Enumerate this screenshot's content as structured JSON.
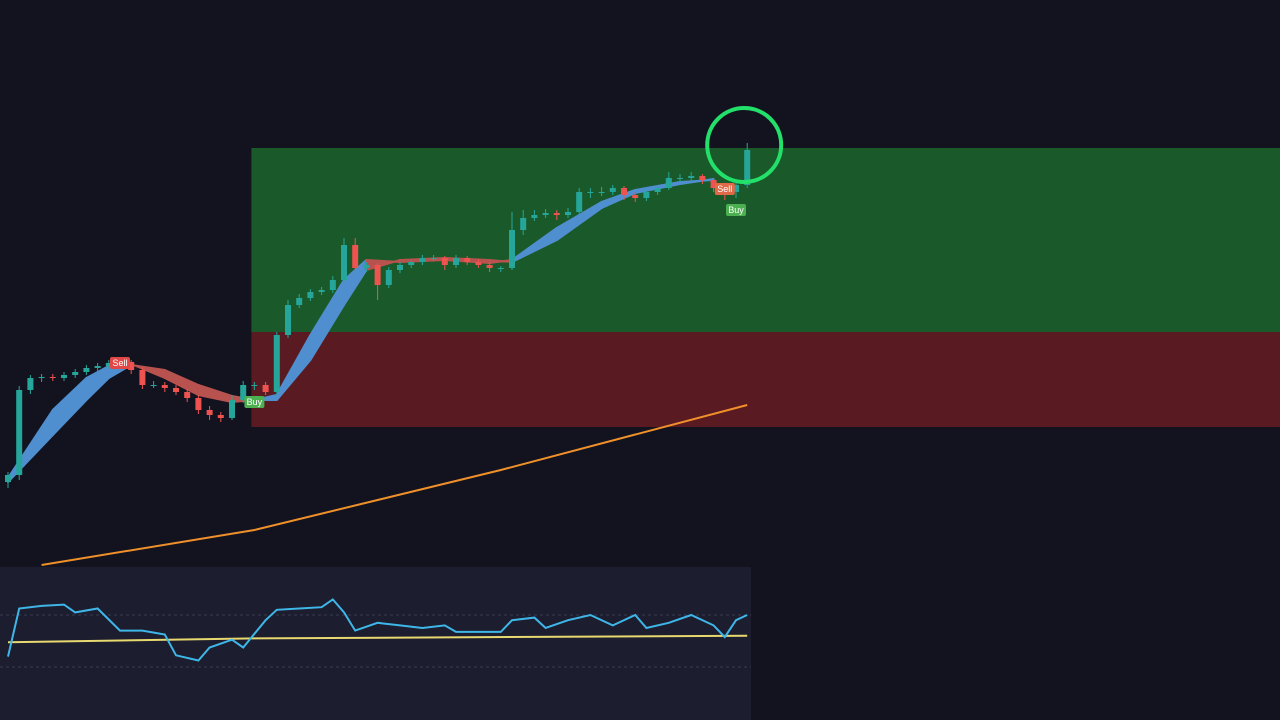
{
  "chart_data": {
    "type": "candlestick",
    "ylim": [
      35,
      600
    ],
    "up_color": "#26a69a",
    "down_color": "#ef5350",
    "candles": [
      [
        118,
        128,
        112,
        125
      ],
      [
        125,
        214,
        120,
        210
      ],
      [
        210,
        225,
        206,
        222
      ],
      [
        222,
        226,
        218,
        223
      ],
      [
        223,
        226,
        219,
        222
      ],
      [
        222,
        228,
        219,
        225
      ],
      [
        225,
        231,
        222,
        228
      ],
      [
        228,
        235,
        225,
        232
      ],
      [
        232,
        237,
        229,
        234
      ],
      [
        234,
        240,
        231,
        237
      ],
      [
        237,
        241,
        234,
        238
      ],
      [
        238,
        240,
        226,
        230
      ],
      [
        230,
        233,
        211,
        215
      ],
      [
        215,
        219,
        212,
        215
      ],
      [
        215,
        218,
        208,
        212
      ],
      [
        212,
        215,
        205,
        208
      ],
      [
        208,
        211,
        198,
        202
      ],
      [
        202,
        205,
        186,
        190
      ],
      [
        190,
        194,
        180,
        185
      ],
      [
        185,
        188,
        178,
        182
      ],
      [
        182,
        205,
        180,
        200
      ],
      [
        200,
        219,
        197,
        215
      ],
      [
        215,
        218,
        210,
        215
      ],
      [
        215,
        218,
        205,
        208
      ],
      [
        208,
        268,
        205,
        265
      ],
      [
        265,
        300,
        262,
        295
      ],
      [
        295,
        306,
        292,
        302
      ],
      [
        302,
        311,
        299,
        308
      ],
      [
        308,
        313,
        305,
        310
      ],
      [
        310,
        324,
        307,
        320
      ],
      [
        320,
        362,
        318,
        355
      ],
      [
        355,
        362,
        330,
        332
      ],
      [
        332,
        338,
        328,
        335
      ],
      [
        335,
        337,
        300,
        315
      ],
      [
        315,
        333,
        312,
        330
      ],
      [
        330,
        338,
        327,
        335
      ],
      [
        335,
        340,
        332,
        338
      ],
      [
        338,
        345,
        335,
        342
      ],
      [
        342,
        345,
        339,
        342
      ],
      [
        342,
        344,
        330,
        335
      ],
      [
        335,
        345,
        332,
        342
      ],
      [
        342,
        344,
        335,
        338
      ],
      [
        338,
        341,
        332,
        335
      ],
      [
        335,
        338,
        328,
        332
      ],
      [
        332,
        334,
        328,
        332
      ],
      [
        332,
        388,
        330,
        370
      ],
      [
        370,
        390,
        365,
        382
      ],
      [
        382,
        390,
        379,
        385
      ],
      [
        385,
        391,
        382,
        387
      ],
      [
        387,
        390,
        380,
        385
      ],
      [
        385,
        392,
        382,
        388
      ],
      [
        388,
        412,
        385,
        408
      ],
      [
        408,
        412,
        402,
        408
      ],
      [
        408,
        413,
        404,
        408
      ],
      [
        408,
        415,
        405,
        412
      ],
      [
        412,
        414,
        400,
        405
      ],
      [
        405,
        408,
        398,
        402
      ],
      [
        402,
        410,
        399,
        408
      ],
      [
        408,
        415,
        405,
        412
      ],
      [
        412,
        428,
        410,
        422
      ],
      [
        422,
        426,
        418,
        422
      ],
      [
        422,
        428,
        419,
        424
      ],
      [
        424,
        426,
        416,
        420
      ],
      [
        420,
        422,
        408,
        412
      ],
      [
        412,
        415,
        400,
        408
      ],
      [
        408,
        418,
        402,
        415
      ],
      [
        415,
        457,
        412,
        450
      ]
    ],
    "ribbon": {
      "x": [
        0,
        4,
        7,
        9,
        11,
        14,
        17,
        20,
        22,
        24,
        27,
        30,
        32,
        35,
        39,
        43,
        45,
        49,
        53,
        56,
        60,
        63
      ],
      "fast": [
        122,
        190,
        222,
        234,
        236,
        222,
        205,
        198,
        200,
        205,
        265,
        320,
        340,
        338,
        340,
        337,
        340,
        372,
        398,
        410,
        418,
        420
      ],
      "slow": [
        118,
        165,
        200,
        222,
        235,
        230,
        215,
        204,
        200,
        200,
        240,
        295,
        330,
        340,
        342,
        340,
        338,
        360,
        392,
        407,
        416,
        421
      ],
      "up_color": "#4f8fcf",
      "down_color": "#b8524f"
    },
    "ema": {
      "x": [
        3,
        22,
        44,
        66
      ],
      "values": [
        35,
        70,
        130,
        195
      ],
      "color": "#f0902a"
    },
    "zones": [
      {
        "from_index": 22,
        "top": 452,
        "bottom": 268,
        "color": "#1a5a2a"
      },
      {
        "from_index": 22,
        "top": 268,
        "bottom": 173,
        "color": "#5a1a22"
      }
    ],
    "signals": [
      {
        "label": "Sell",
        "index": 10,
        "color": "#e04848"
      },
      {
        "label": "Buy",
        "index": 22,
        "color": "#4caf50"
      },
      {
        "label": "Sell",
        "index": 64,
        "color": "#e06a48"
      },
      {
        "label": "Buy",
        "index": 65,
        "color": "#4caf50"
      }
    ],
    "oscillator": {
      "ylim": [
        0,
        100
      ],
      "levels": [
        70,
        30
      ],
      "x": [
        0,
        1,
        3,
        5,
        6,
        8,
        10,
        12,
        14,
        15,
        17,
        18,
        20,
        21,
        23,
        24,
        26,
        28,
        29,
        30,
        31,
        33,
        35,
        37,
        39,
        40,
        42,
        44,
        45,
        47,
        48,
        50,
        52,
        54,
        56,
        57,
        59,
        61,
        63,
        64,
        65,
        66
      ],
      "values": [
        38,
        75,
        77,
        78,
        72,
        75,
        58,
        58,
        55,
        39,
        35,
        45,
        51,
        45,
        66,
        74,
        75,
        76,
        82,
        72,
        58,
        64,
        62,
        60,
        62,
        57,
        57,
        57,
        66,
        68,
        60,
        66,
        70,
        62,
        70,
        60,
        64,
        70,
        62,
        53,
        66,
        70
      ],
      "color": "#3fb6e8",
      "signal": {
        "x": [
          0,
          22,
          66
        ],
        "values": [
          49,
          52,
          54
        ],
        "color": "#e8d870"
      }
    }
  }
}
